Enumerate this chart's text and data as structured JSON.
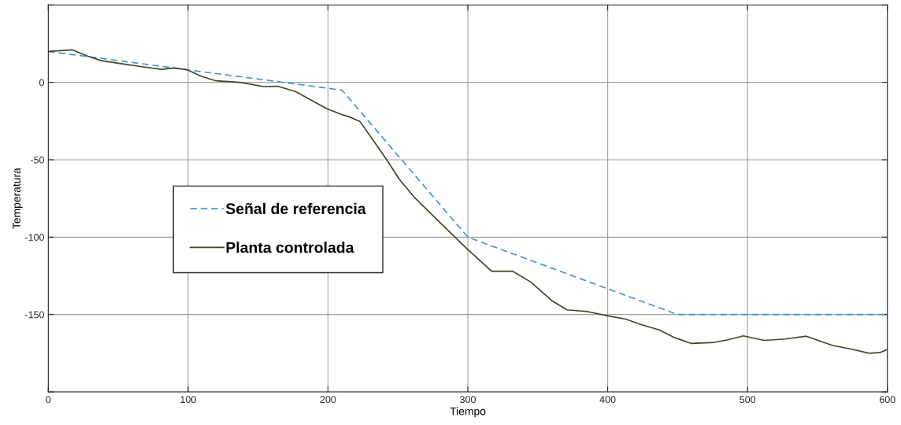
{
  "chart_data": {
    "type": "line",
    "xlabel": "Tiempo",
    "ylabel": "Temperatura",
    "xlim": [
      0,
      600
    ],
    "xticks": [
      0,
      100,
      200,
      300,
      400,
      500,
      600
    ],
    "ylim": [
      -200,
      50
    ],
    "yticks": [
      {
        "value": -200,
        "label": null
      },
      -150,
      -100,
      -50,
      0,
      {
        "value": 50,
        "label": null
      }
    ],
    "grid": true,
    "legend": "center left",
    "series": [
      {
        "name": "Señal de referencia",
        "color": "#3d95cc",
        "line_style": "dashed",
        "x": [
          0,
          210,
          300,
          450,
          600
        ],
        "values": [
          20,
          -5,
          -100,
          -150,
          -150
        ]
      },
      {
        "name": "Planta controlada",
        "color": "#3b4726",
        "line_style": "solid",
        "x": [
          0,
          17,
          28,
          38,
          53,
          68,
          81,
          90,
          100,
          109,
          120,
          137,
          154,
          164,
          177,
          199,
          209,
          216,
          223,
          232,
          242,
          251,
          262,
          281,
          300,
          317,
          332,
          345,
          360,
          371,
          385,
          401,
          413,
          424,
          437,
          448,
          460,
          476,
          486,
          497,
          512,
          527,
          542,
          561,
          574,
          587,
          595,
          600
        ],
        "values": [
          20,
          21,
          17,
          14,
          12,
          10,
          8.4,
          9.3,
          8,
          4,
          1,
          0,
          -2.7,
          -2.5,
          -6,
          -17,
          -20.5,
          -22.5,
          -25.4,
          -37,
          -50,
          -62.6,
          -74.5,
          -91.4,
          -108,
          -122,
          -122,
          -129,
          -141,
          -147,
          -148,
          -151,
          -153,
          -156.5,
          -160,
          -165,
          -168.7,
          -168,
          -166.3,
          -163.8,
          -166.7,
          -165.8,
          -164,
          -170,
          -172.3,
          -175,
          -174.5,
          -172.6
        ]
      }
    ]
  }
}
